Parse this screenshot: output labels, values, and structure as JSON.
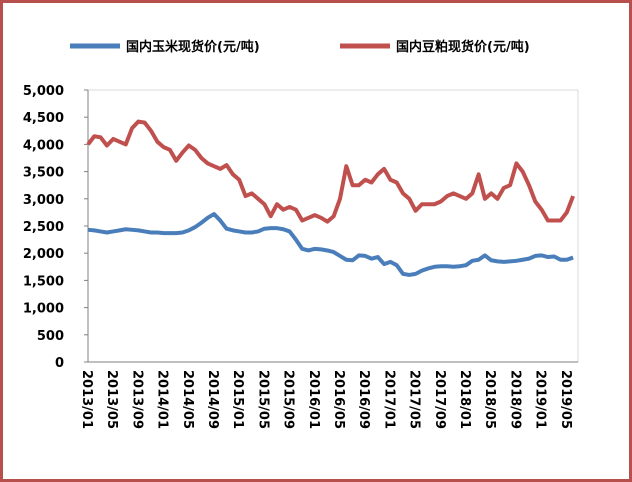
{
  "chart_data": {
    "type": "line",
    "categories": [
      "2013/01",
      null,
      null,
      null,
      "2013/05",
      null,
      null,
      null,
      "2013/09",
      null,
      null,
      null,
      "2014/01",
      null,
      null,
      null,
      "2014/05",
      null,
      null,
      null,
      "2014/09",
      null,
      null,
      null,
      "2015/01",
      null,
      null,
      null,
      "2015/05",
      null,
      null,
      null,
      "2015/09",
      null,
      null,
      null,
      "2016/01",
      null,
      null,
      null,
      "2016/05",
      null,
      null,
      null,
      "2016/09",
      null,
      null,
      null,
      "2017/01",
      null,
      null,
      null,
      "2017/05",
      null,
      null,
      null,
      "2017/09",
      null,
      null,
      null,
      "2018/01",
      null,
      null,
      null,
      "2018/05",
      null,
      null,
      null,
      "2018/09",
      null,
      null,
      null,
      "2019/01",
      null,
      null,
      null,
      "2019/05",
      null
    ],
    "series": [
      {
        "name": "国内玉米现货价(元/吨)",
        "color": "#4a7ebb",
        "values": [
          2430,
          2420,
          2400,
          2380,
          2400,
          2420,
          2440,
          2430,
          2420,
          2400,
          2380,
          2380,
          2370,
          2370,
          2370,
          2380,
          2420,
          2480,
          2560,
          2650,
          2720,
          2600,
          2450,
          2420,
          2400,
          2380,
          2380,
          2400,
          2450,
          2460,
          2460,
          2440,
          2400,
          2250,
          2080,
          2050,
          2080,
          2070,
          2050,
          2020,
          1950,
          1880,
          1870,
          1960,
          1950,
          1900,
          1930,
          1800,
          1840,
          1780,
          1620,
          1600,
          1620,
          1680,
          1720,
          1750,
          1760,
          1760,
          1750,
          1760,
          1780,
          1860,
          1880,
          1960,
          1870,
          1850,
          1840,
          1850,
          1860,
          1880,
          1900,
          1950,
          1960,
          1930,
          1940,
          1880,
          1880,
          1920
        ]
      },
      {
        "name": "国内豆粕现货价(元/吨)",
        "color": "#c0504d",
        "values": [
          4000,
          4150,
          4130,
          3980,
          4100,
          4050,
          4000,
          4300,
          4420,
          4400,
          4250,
          4050,
          3950,
          3900,
          3700,
          3850,
          3980,
          3900,
          3750,
          3650,
          3600,
          3550,
          3620,
          3450,
          3350,
          3050,
          3100,
          3000,
          2900,
          2680,
          2900,
          2800,
          2850,
          2800,
          2600,
          2650,
          2700,
          2650,
          2580,
          2680,
          3000,
          3600,
          3250,
          3250,
          3350,
          3300,
          3450,
          3550,
          3350,
          3300,
          3100,
          3000,
          2780,
          2900,
          2900,
          2900,
          2950,
          3050,
          3100,
          3050,
          3000,
          3100,
          3450,
          3000,
          3100,
          3000,
          3200,
          3250,
          3650,
          3500,
          3250,
          2950,
          2800,
          2600,
          2600,
          2600,
          2750,
          3050
        ]
      }
    ],
    "ylim": [
      0,
      5000
    ],
    "yticks": [
      0,
      500,
      {
        "value": 1000,
        "label": "1,000"
      },
      {
        "value": 1500,
        "label": "1,500"
      },
      {
        "value": 2000,
        "label": "2,000"
      },
      {
        "value": 2500,
        "label": "2,500"
      },
      {
        "value": 3000,
        "label": "3,000"
      },
      {
        "value": 3500,
        "label": "3,500"
      },
      {
        "value": 4000,
        "label": "4,000"
      },
      {
        "value": 4500,
        "label": "4,500"
      },
      {
        "value": 5000,
        "label": "5,000"
      }
    ],
    "legend": "top"
  }
}
